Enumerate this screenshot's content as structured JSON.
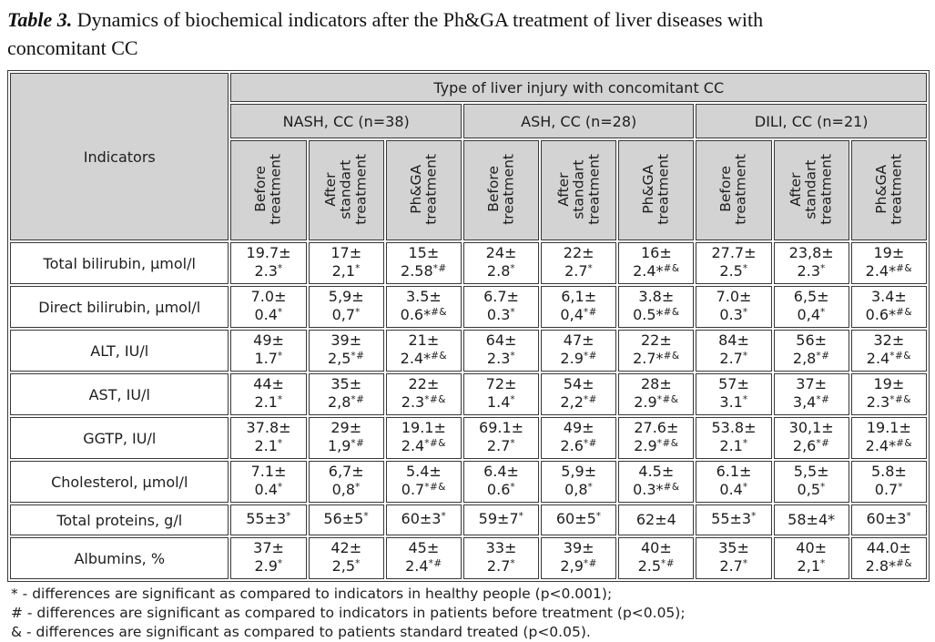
{
  "title": {
    "label": "Table 3.",
    "text": "Dynamics of biochemical indicators after the Ph&GA treatment of liver diseases with\nconcomitant CC"
  },
  "table": {
    "indicators_header": "Indicators",
    "top_header": "Type of liver injury with concomitant CC",
    "groups": [
      {
        "label": "NASH, CC (n=38)"
      },
      {
        "label": "ASH, CC (n=28)"
      },
      {
        "label": "DILI, CC (n=21)"
      }
    ],
    "col_headers": [
      "Before\ntreatment",
      "After\nstandart\ntreatment",
      "Ph&GA\ntreatment",
      "Before\ntreatment",
      "After\nstandart\ntreatment",
      "Ph&GA\ntreatment",
      "Before\ntreatment",
      "After\nstandart\ntreatment",
      "Ph&GA\ntreatment"
    ],
    "rows": [
      {
        "indicator": "Total bilirubin, µmol/l",
        "cells": [
          {
            "v": "19.7±",
            "v2": "2.3",
            "s": "*"
          },
          {
            "v": "17±",
            "v2": "2,1",
            "s": "*"
          },
          {
            "v": "15±",
            "v2": "2.58",
            "s": "*#"
          },
          {
            "v": "24±",
            "v2": "2.8",
            "s": "*"
          },
          {
            "v": "22±",
            "v2": "2.7",
            "s": "*"
          },
          {
            "v": "16±",
            "v2": "2.4*",
            "s": "#&"
          },
          {
            "v": "27.7±",
            "v2": "2.5",
            "s": "*"
          },
          {
            "v": "23,8±",
            "v2": "2.3",
            "s": "*"
          },
          {
            "v": "19±",
            "v2": "2.4*",
            "s": "#&"
          }
        ]
      },
      {
        "indicator": "Direct bilirubin, µmol/l",
        "cells": [
          {
            "v": "7.0±",
            "v2": "0.4",
            "s": "*"
          },
          {
            "v": "5,9±",
            "v2": "0,7",
            "s": "*"
          },
          {
            "v": "3.5±",
            "v2": "0.6*",
            "s": "#&"
          },
          {
            "v": "6.7±",
            "v2": "0.3",
            "s": "*"
          },
          {
            "v": "6,1±",
            "v2": "0,4",
            "s": "*#"
          },
          {
            "v": "3.8±",
            "v2": "0.5*",
            "s": "#&"
          },
          {
            "v": "7.0±",
            "v2": "0.3",
            "s": "*"
          },
          {
            "v": "6,5±",
            "v2": "0,4",
            "s": "*"
          },
          {
            "v": "3.4±",
            "v2": "0.6*",
            "s": "#&"
          }
        ]
      },
      {
        "indicator": "ALT, IU/l",
        "cells": [
          {
            "v": "49±",
            "v2": "1.7",
            "s": "*"
          },
          {
            "v": "39±",
            "v2": "2,5",
            "s": "*#"
          },
          {
            "v": "21±",
            "v2": "2.4*",
            "s": "#&"
          },
          {
            "v": "64±",
            "v2": "2.3",
            "s": "*"
          },
          {
            "v": "47±",
            "v2": "2.9",
            "s": "*#"
          },
          {
            "v": "22±",
            "v2": "2.7*",
            "s": "#&"
          },
          {
            "v": "84±",
            "v2": "2.7",
            "s": "*"
          },
          {
            "v": "56±",
            "v2": "2,8",
            "s": "*#"
          },
          {
            "v": "32±",
            "v2": "2.4",
            "s": "*#&"
          }
        ]
      },
      {
        "indicator": "AST, IU/l",
        "cells": [
          {
            "v": "44±",
            "v2": "2.1",
            "s": "*"
          },
          {
            "v": "35±",
            "v2": "2,8",
            "s": "*#"
          },
          {
            "v": "22±",
            "v2": "2.3",
            "s": "*#&"
          },
          {
            "v": "72±",
            "v2": "1.4",
            "s": "*"
          },
          {
            "v": "54±",
            "v2": "2,2",
            "s": "*#"
          },
          {
            "v": "28±",
            "v2": "2.9",
            "s": "*#&"
          },
          {
            "v": "57±",
            "v2": "3.1",
            "s": "*"
          },
          {
            "v": "37±",
            "v2": "3,4",
            "s": "*#"
          },
          {
            "v": "19±",
            "v2": "2.3",
            "s": "*#&"
          }
        ]
      },
      {
        "indicator": "GGTP, IU/l",
        "cells": [
          {
            "v": "37.8±",
            "v2": "2.1",
            "s": "*"
          },
          {
            "v": "29±",
            "v2": "1,9",
            "s": "*#"
          },
          {
            "v": "19.1±",
            "v2": "2.4",
            "s": "*#&"
          },
          {
            "v": "69.1±",
            "v2": "2.7",
            "s": "*"
          },
          {
            "v": "49±",
            "v2": "2.6",
            "s": "*#"
          },
          {
            "v": "27.6±",
            "v2": "2.9",
            "s": "*#&"
          },
          {
            "v": "53.8±",
            "v2": "2.1",
            "s": "*"
          },
          {
            "v": "30,1±",
            "v2": "2,6",
            "s": "*#"
          },
          {
            "v": "19.1±",
            "v2": "2.4*",
            "s": "#&"
          }
        ]
      },
      {
        "indicator": "Cholesterol, µmol/l",
        "cells": [
          {
            "v": "7.1±",
            "v2": "0.4",
            "s": "*"
          },
          {
            "v": "6,7±",
            "v2": "0,8",
            "s": "*"
          },
          {
            "v": "5.4±",
            "v2": "0.7",
            "s": "*#&"
          },
          {
            "v": "6.4±",
            "v2": "0.6",
            "s": "*"
          },
          {
            "v": "5,9±",
            "v2": "0,8",
            "s": "*"
          },
          {
            "v": "4.5±",
            "v2": "0.3*",
            "s": "#&"
          },
          {
            "v": "6.1±",
            "v2": "0.4",
            "s": "*"
          },
          {
            "v": "5,5±",
            "v2": "0,5",
            "s": "*"
          },
          {
            "v": "5.8±",
            "v2": "0.7",
            "s": "*"
          }
        ]
      },
      {
        "indicator": "Total proteins, g/l",
        "cells": [
          {
            "v": "55±3",
            "v2": "",
            "s": "*"
          },
          {
            "v": "56±5",
            "v2": "",
            "s": "*"
          },
          {
            "v": "60±3",
            "v2": "",
            "s": "*"
          },
          {
            "v": "59±7",
            "v2": "",
            "s": "*"
          },
          {
            "v": "60±5",
            "v2": "",
            "s": "*"
          },
          {
            "v": "62±4",
            "v2": "",
            "s": ""
          },
          {
            "v": "55±3",
            "v2": "",
            "s": "*"
          },
          {
            "v": "58±4*",
            "v2": "",
            "s": ""
          },
          {
            "v": "60±3",
            "v2": "",
            "s": "*"
          }
        ]
      },
      {
        "indicator": "Albumins, %",
        "cells": [
          {
            "v": "37±",
            "v2": "2.9",
            "s": "*"
          },
          {
            "v": "42±",
            "v2": "2,5",
            "s": "*"
          },
          {
            "v": "45±",
            "v2": "2.4",
            "s": "*#"
          },
          {
            "v": "33±",
            "v2": "2.7",
            "s": "*"
          },
          {
            "v": "39±",
            "v2": "2,9",
            "s": "*#"
          },
          {
            "v": "40±",
            "v2": "2.5",
            "s": "*#"
          },
          {
            "v": "35±",
            "v2": "2.7",
            "s": "*"
          },
          {
            "v": "40±",
            "v2": "2,1",
            "s": "*"
          },
          {
            "v": "44.0±",
            "v2": "2.8*",
            "s": "#&"
          }
        ]
      }
    ]
  },
  "footnotes": [
    "* - differences are significant as compared to indicators in healthy people (p<0.001);",
    "# - differences are significant as compared to indicators in patients before treatment (p<0.05);",
    "& - differences are significant as compared to patients standard treated (p<0.05)."
  ]
}
